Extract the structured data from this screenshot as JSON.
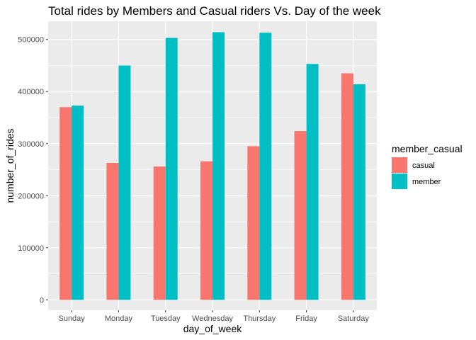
{
  "chart_data": {
    "type": "bar",
    "title": "Total rides by Members and Casual riders Vs. Day of the week",
    "xlabel": "day_of_week",
    "ylabel": "number_of_rides",
    "categories": [
      "Sunday",
      "Monday",
      "Tuesday",
      "Wednesday",
      "Thursday",
      "Friday",
      "Saturday"
    ],
    "series": [
      {
        "name": "casual",
        "color": "#F8766D",
        "values": [
          370000,
          263000,
          256000,
          266000,
          295000,
          324000,
          435000
        ]
      },
      {
        "name": "member",
        "color": "#00BFC4",
        "values": [
          373000,
          450000,
          503000,
          514000,
          513000,
          453000,
          414000
        ]
      }
    ],
    "ylim": [
      -20000,
      535000
    ],
    "yticks": [
      0,
      100000,
      200000,
      300000,
      400000,
      500000
    ],
    "ytick_labels": [
      "0",
      "100000",
      "200000",
      "300000",
      "400000",
      "500000"
    ],
    "grid": true,
    "legend": {
      "title": "member_casual",
      "position": "right"
    }
  }
}
